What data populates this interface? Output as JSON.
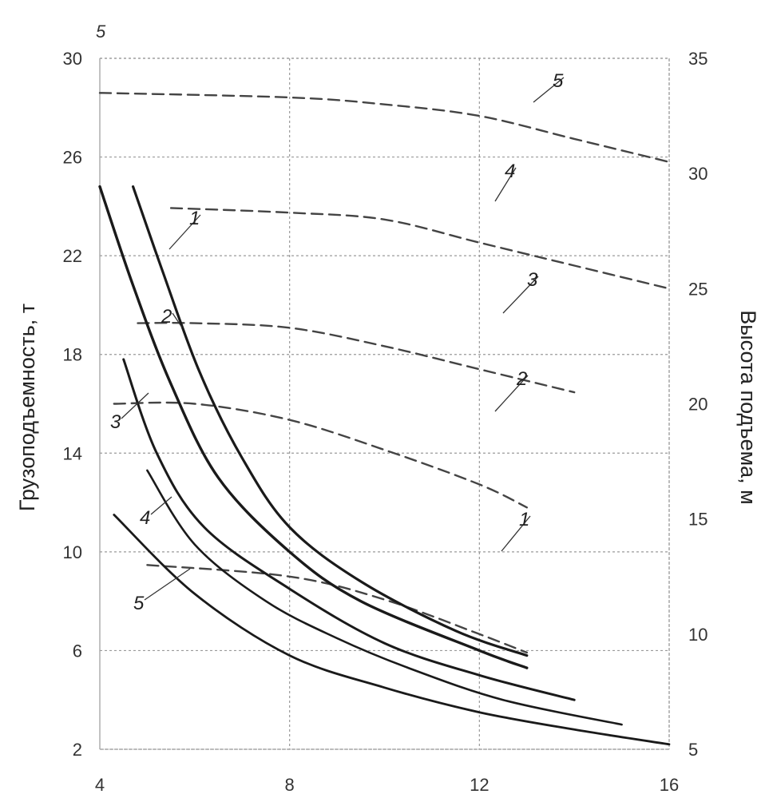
{
  "chart_data": {
    "type": "line",
    "ylabel_left": "Грузоподъемность, т",
    "ylabel_right": "Высота подъема, м",
    "x_ticks": [
      "4",
      "8",
      "12",
      "16"
    ],
    "y_left_ticks": [
      "2",
      "6",
      "10",
      "14",
      "18",
      "22",
      "26",
      "30"
    ],
    "y_right_ticks": [
      "5",
      "10",
      "15",
      "20",
      "25",
      "30",
      "35"
    ],
    "top_left_label": "5",
    "xlim": [
      4,
      16
    ],
    "ylim_left": [
      2,
      30
    ],
    "ylim_right": [
      5,
      35
    ],
    "grid": true,
    "capacity_series": [
      {
        "name": "1",
        "x": [
          4.7,
          5.3,
          6.1,
          7.0,
          8.0,
          9.5,
          11.5,
          13.0
        ],
        "y": [
          24.8,
          21.5,
          17.3,
          13.8,
          11.0,
          8.8,
          6.8,
          5.8
        ]
      },
      {
        "name": "2",
        "x": [
          4.0,
          4.7,
          5.5,
          6.5,
          8.0,
          9.5,
          12.0,
          13.0
        ],
        "y": [
          24.8,
          20.8,
          16.8,
          13.0,
          10.0,
          8.0,
          6.0,
          5.3
        ]
      },
      {
        "name": "3",
        "x": [
          4.5,
          5.2,
          6.2,
          8.0,
          10.0,
          12.0,
          14.0
        ],
        "y": [
          17.8,
          14.0,
          11.0,
          8.5,
          6.3,
          5.0,
          4.0
        ]
      },
      {
        "name": "4",
        "x": [
          5.0,
          6.0,
          7.5,
          9.0,
          10.5,
          12.5,
          15.0
        ],
        "y": [
          13.3,
          10.3,
          8.0,
          6.5,
          5.3,
          4.0,
          3.0
        ]
      },
      {
        "name": "5",
        "x": [
          4.3,
          6.0,
          8.0,
          10.0,
          12.0,
          14.0,
          16.0
        ],
        "y": [
          11.5,
          8.3,
          5.8,
          4.5,
          3.5,
          2.8,
          2.2
        ]
      }
    ],
    "height_series": [
      {
        "name": "1",
        "x": [
          5.0,
          8.0,
          10.0,
          12.0,
          13.0
        ],
        "y": [
          13.0,
          12.5,
          11.5,
          10.0,
          9.2
        ]
      },
      {
        "name": "2",
        "x": [
          4.3,
          6.0,
          8.0,
          10.0,
          12.0,
          13.0
        ],
        "y": [
          20.0,
          20.0,
          19.3,
          18.0,
          16.5,
          15.5
        ]
      },
      {
        "name": "3",
        "x": [
          4.8,
          6.0,
          8.0,
          10.0,
          12.0,
          14.0
        ],
        "y": [
          23.5,
          23.5,
          23.3,
          22.5,
          21.5,
          20.5
        ]
      },
      {
        "name": "4",
        "x": [
          5.5,
          8.0,
          10.0,
          12.0,
          14.0,
          16.0
        ],
        "y": [
          28.5,
          28.3,
          28.0,
          27.0,
          26.0,
          25.0
        ]
      },
      {
        "name": "5",
        "x": [
          4.0,
          8.0,
          10.0,
          12.0,
          14.0,
          16.0
        ],
        "y": [
          33.5,
          33.3,
          33.0,
          32.5,
          31.5,
          30.5
        ]
      }
    ]
  }
}
